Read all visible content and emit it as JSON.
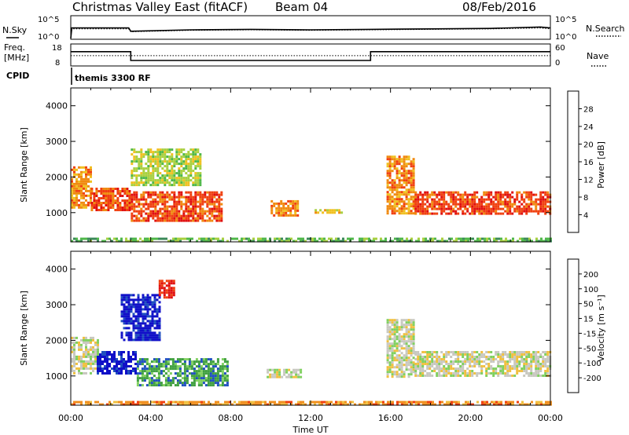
{
  "header": {
    "title": "Christmas Valley East (fitACF)",
    "beam": "Beam 04",
    "date": "08/Feb/2016"
  },
  "summary": {
    "nsky_label": "N.Sky",
    "nsearch_label": "N.Search",
    "noise_ticks": [
      "10^5",
      "10^0"
    ],
    "freq_label_1": "Freq.",
    "freq_label_2": "[MHz]",
    "freq_ticks": [
      "18",
      "8"
    ],
    "nave_label": "Nave",
    "nave_ticks": [
      "60",
      "0"
    ],
    "cpid_label": "CPID",
    "cpid_value": "themis 3300 RF"
  },
  "colors": {
    "frame": "#000000",
    "ground_scatter": "#c8c8c0",
    "power_scale": [
      "#1f1fd6",
      "#2a4fa8",
      "#3c8a5a",
      "#4fb84a",
      "#a8d040",
      "#f0c020",
      "#f08a10",
      "#f04010",
      "#e01010"
    ],
    "velocity_scale": [
      "#e01010",
      "#f04010",
      "#f09020",
      "#f0c040",
      "#c8c8c0",
      "#80d060",
      "#40a040",
      "#2050c0",
      "#1010c8"
    ]
  },
  "chart_data": [
    {
      "type": "line",
      "name": "noise",
      "x": [
        0,
        0.05,
        2.9,
        3.0,
        6,
        9,
        12,
        15,
        18,
        21,
        23.5,
        24
      ],
      "series": [
        {
          "name": "N.Sky",
          "values": [
            0.2,
            2.4,
            2.4,
            1.7,
            2.0,
            2.1,
            2.0,
            2.1,
            2.2,
            2.3,
            2.6,
            2.4
          ]
        },
        {
          "name": "N.Search",
          "values": [
            0.2,
            2.2,
            2.2,
            1.6,
            1.9,
            2.0,
            1.9,
            2.0,
            2.1,
            2.2,
            2.4,
            2.2
          ]
        }
      ],
      "ylim": [
        0,
        5
      ],
      "ylabel": "N.Sky"
    },
    {
      "type": "line",
      "name": "frequency",
      "x": [
        0,
        3,
        3,
        15,
        15,
        24
      ],
      "series": [
        {
          "name": "Freq.",
          "values": [
            14.5,
            14.5,
            10.5,
            10.5,
            14.5,
            14.5
          ]
        },
        {
          "name": "Nave",
          "values": [
            28,
            28,
            28,
            28,
            28,
            28
          ]
        }
      ],
      "ylim": [
        8,
        18
      ],
      "ylabel": "Freq. [MHz]"
    },
    {
      "type": "heatmap",
      "name": "power",
      "xlabel": "",
      "ylabel": "Slant Range [km]",
      "xlim": [
        0,
        24
      ],
      "ylim": [
        180,
        4500
      ],
      "yticks": [
        1000,
        2000,
        3000,
        4000
      ],
      "colorbar": {
        "label": "Power [dB]",
        "ticks": [
          "4",
          "8",
          "12",
          "16",
          "20",
          "24",
          "28"
        ],
        "range": [
          0,
          30
        ]
      },
      "bands": [
        {
          "t0": 0,
          "t1": 1.0,
          "r0": 1150,
          "r1": 2300,
          "value": 22
        },
        {
          "t0": 1.0,
          "t1": 3.0,
          "r0": 1100,
          "r1": 1700,
          "value": 26
        },
        {
          "t0": 3.0,
          "t1": 7.6,
          "r0": 750,
          "r1": 1600,
          "value": 25
        },
        {
          "t0": 3.0,
          "t1": 6.5,
          "r0": 1800,
          "r1": 2800,
          "value": 14
        },
        {
          "t0": 10.0,
          "t1": 11.4,
          "r0": 950,
          "r1": 1350,
          "value": 24
        },
        {
          "t0": 12.2,
          "t1": 13.5,
          "r0": 1000,
          "r1": 1100,
          "value": 18
        },
        {
          "t0": 15.8,
          "t1": 17.2,
          "r0": 1000,
          "r1": 2600,
          "value": 22
        },
        {
          "t0": 17.2,
          "t1": 24.0,
          "r0": 950,
          "r1": 1600,
          "value": 27
        },
        {
          "t0": 0,
          "t1": 24,
          "r0": 190,
          "r1": 300,
          "value": 10
        }
      ]
    },
    {
      "type": "heatmap",
      "name": "velocity",
      "xlabel": "Time UT",
      "ylabel": "Slant Range [km]",
      "xlim": [
        0,
        24
      ],
      "ylim": [
        180,
        4500
      ],
      "yticks": [
        1000,
        2000,
        3000,
        4000
      ],
      "xticks": [
        "00:00",
        "04:00",
        "08:00",
        "12:00",
        "16:00",
        "20:00",
        "00:00"
      ],
      "colorbar": {
        "label": "Velocity [m s⁻¹]",
        "ticks": [
          "-200",
          "-100",
          "-50",
          "-15",
          "15",
          "50",
          "100",
          "200"
        ],
        "range": [
          -250,
          250
        ]
      },
      "bands": [
        {
          "t0": 0,
          "t1": 1.3,
          "r0": 1100,
          "r1": 2100,
          "value": 0
        },
        {
          "t0": 1.3,
          "t1": 3.3,
          "r0": 1100,
          "r1": 1700,
          "value": 220
        },
        {
          "t0": 3.3,
          "t1": 7.8,
          "r0": 750,
          "r1": 1500,
          "value": 60
        },
        {
          "t0": 2.5,
          "t1": 4.5,
          "r0": 2000,
          "r1": 3300,
          "value": 200
        },
        {
          "t0": 4.4,
          "t1": 5.2,
          "r0": 3200,
          "r1": 3700,
          "value": -220
        },
        {
          "t0": 9.8,
          "t1": 11.5,
          "r0": 950,
          "r1": 1200,
          "value": 0
        },
        {
          "t0": 15.8,
          "t1": 17.2,
          "r0": 1000,
          "r1": 2600,
          "value": 0
        },
        {
          "t0": 17.2,
          "t1": 24.0,
          "r0": 1000,
          "r1": 1700,
          "value": 0
        },
        {
          "t0": 0,
          "t1": 24,
          "r0": 190,
          "r1": 300,
          "value": -40
        }
      ]
    }
  ]
}
